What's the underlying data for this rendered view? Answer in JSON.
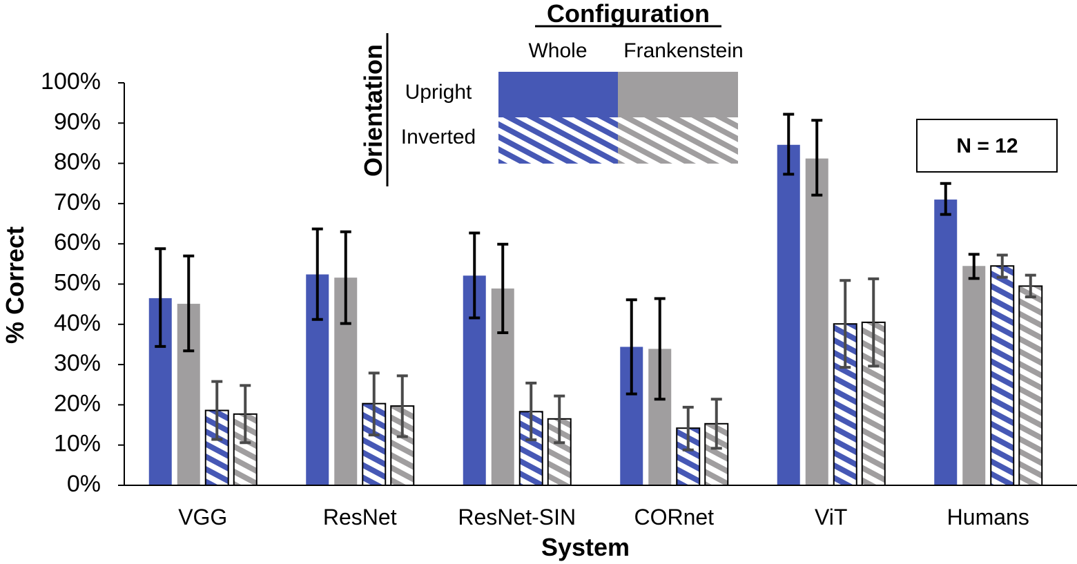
{
  "chart_data": {
    "type": "bar",
    "xlabel": "System",
    "ylabel": "% Correct",
    "ylim": [
      0,
      100
    ],
    "yticks": [
      "0%",
      "10%",
      "20%",
      "30%",
      "40%",
      "50%",
      "60%",
      "70%",
      "80%",
      "90%",
      "100%"
    ],
    "categories": [
      "VGG",
      "ResNet",
      "ResNet-SIN",
      "CORnet",
      "ViT",
      "Humans"
    ],
    "series": [
      {
        "name": "Upright Whole",
        "color": "#4658b5",
        "pattern": "solid",
        "values": [
          46.5,
          52.4,
          52.1,
          34.4,
          84.6,
          71.0
        ],
        "err_low": [
          34.5,
          41.2,
          41.6,
          22.7,
          77.3,
          67.3
        ],
        "err_high": [
          58.8,
          63.7,
          62.7,
          46.1,
          92.2,
          75.0
        ]
      },
      {
        "name": "Upright Frankenstein",
        "color": "#a09e9f",
        "pattern": "solid",
        "values": [
          45.1,
          51.6,
          48.9,
          33.9,
          81.2,
          54.5
        ],
        "err_low": [
          33.4,
          40.2,
          37.9,
          21.4,
          72.1,
          51.4
        ],
        "err_high": [
          57.0,
          63.0,
          59.9,
          46.4,
          90.7,
          57.4
        ]
      },
      {
        "name": "Inverted Whole",
        "color": "#4658b5",
        "pattern": "striped",
        "values": [
          18.6,
          20.3,
          18.3,
          14.2,
          40.1,
          54.5
        ],
        "err_low": [
          11.4,
          12.5,
          11.3,
          8.8,
          29.3,
          51.7
        ],
        "err_high": [
          25.8,
          27.9,
          25.4,
          19.4,
          50.9,
          57.2
        ]
      },
      {
        "name": "Inverted Frankenstein",
        "color": "#a09e9f",
        "pattern": "striped",
        "values": [
          17.7,
          19.7,
          16.5,
          15.3,
          40.5,
          49.5
        ],
        "err_low": [
          10.6,
          12.1,
          10.6,
          9.2,
          29.6,
          46.8
        ],
        "err_high": [
          24.8,
          27.2,
          22.2,
          21.4,
          51.3,
          52.2
        ]
      }
    ],
    "legend": {
      "title": "Configuration",
      "side_title": "Orientation",
      "columns": [
        "Whole",
        "Frankenstein"
      ],
      "rows": [
        "Upright",
        "Inverted"
      ],
      "placement": "top-center"
    },
    "annotation": "N = 12",
    "grid": false
  }
}
